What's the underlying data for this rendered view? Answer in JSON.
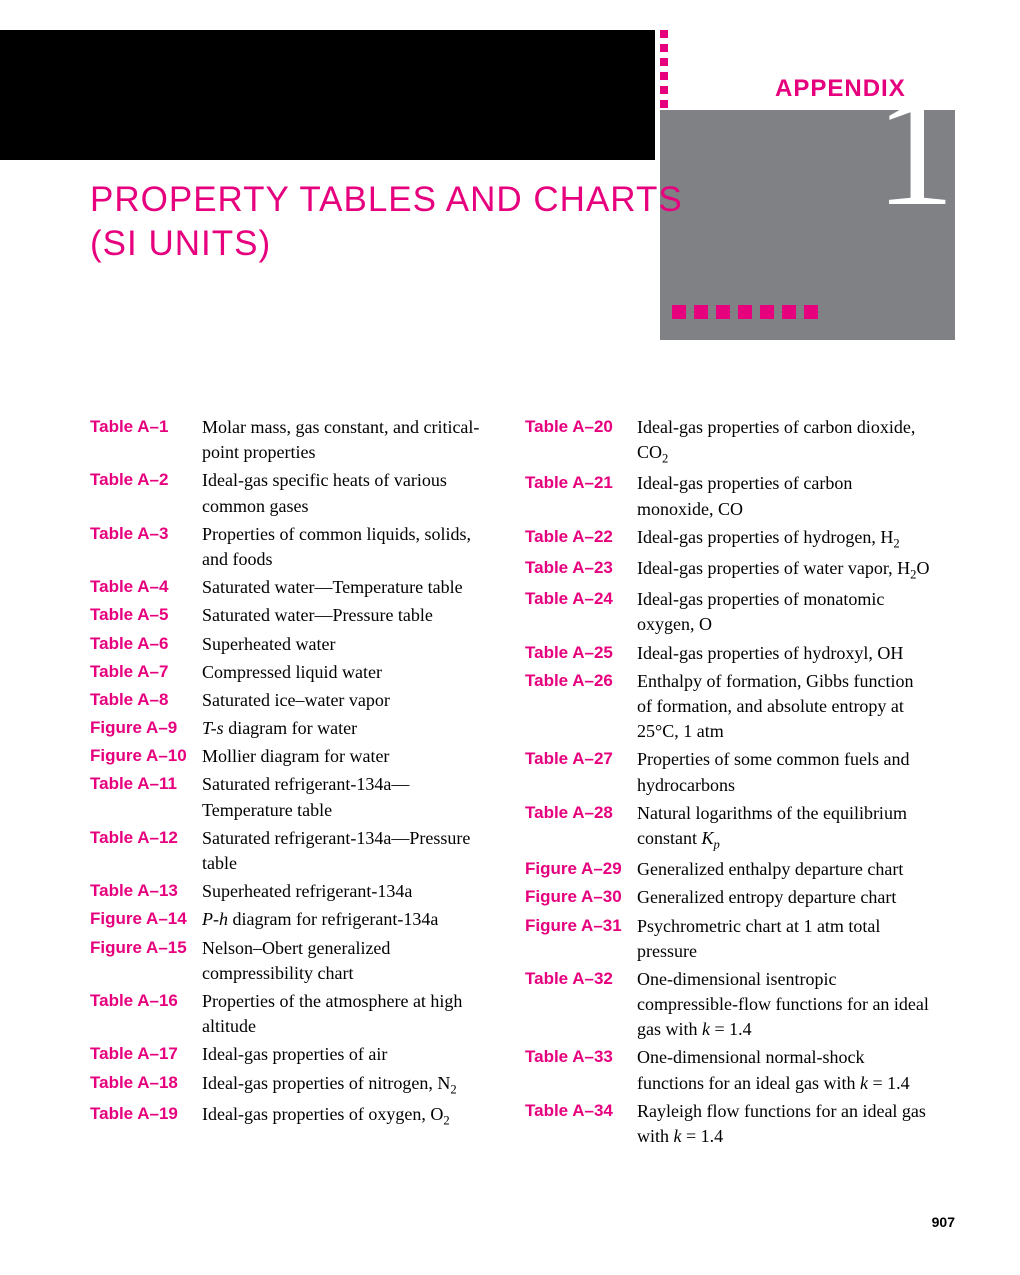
{
  "header": {
    "appendix_label": "APPENDIX",
    "appendix_number": "1",
    "title_line1": "PROPERTY TABLES AND CHARTS",
    "title_line2": "(SI UNITS)"
  },
  "colors": {
    "magenta": "#e6007e",
    "gray": "#808184",
    "black": "#000000",
    "white": "#ffffff"
  },
  "toc_left": [
    {
      "label": "Table A–1",
      "desc": "Molar mass, gas constant, and critical-point properties"
    },
    {
      "label": "Table A–2",
      "desc": "Ideal-gas specific heats of various common gases"
    },
    {
      "label": "Table A–3",
      "desc": "Properties of common liquids, solids, and foods"
    },
    {
      "label": "Table A–4",
      "desc": "Saturated water—Temperature table"
    },
    {
      "label": "Table A–5",
      "desc": "Saturated water—Pressure table"
    },
    {
      "label": "Table A–6",
      "desc": "Superheated water"
    },
    {
      "label": "Table A–7",
      "desc": "Compressed liquid water"
    },
    {
      "label": "Table A–8",
      "desc": "Saturated ice–water vapor"
    },
    {
      "label": "Figure A–9",
      "desc": "<i>T-s</i> diagram for water"
    },
    {
      "label": "Figure A–10",
      "desc": "Mollier diagram for water"
    },
    {
      "label": "Table A–11",
      "desc": "Saturated refrigerant-134a—Temperature table"
    },
    {
      "label": "Table A–12",
      "desc": "Saturated refrigerant-134a—Pressure table"
    },
    {
      "label": "Table A–13",
      "desc": "Superheated refrigerant-134a"
    },
    {
      "label": "Figure A–14",
      "desc": "<i>P-h</i> diagram for refrigerant-134a"
    },
    {
      "label": "Figure A–15",
      "desc": "Nelson–Obert generalized compressibility chart"
    },
    {
      "label": "Table A–16",
      "desc": "Properties of the atmosphere at high altitude"
    },
    {
      "label": "Table A–17",
      "desc": "Ideal-gas properties of air"
    },
    {
      "label": "Table A–18",
      "desc": "Ideal-gas properties of nitrogen, N<sub>2</sub>"
    },
    {
      "label": "Table A–19",
      "desc": "Ideal-gas properties of oxygen, O<sub>2</sub>"
    }
  ],
  "toc_right": [
    {
      "label": "Table A–20",
      "desc": "Ideal-gas properties of carbon dioxide, CO<sub>2</sub>"
    },
    {
      "label": "Table A–21",
      "desc": "Ideal-gas properties of carbon monoxide, CO"
    },
    {
      "label": "Table A–22",
      "desc": "Ideal-gas properties of hydrogen, H<sub>2</sub>"
    },
    {
      "label": "Table A–23",
      "desc": "Ideal-gas properties of water vapor, H<sub>2</sub>O"
    },
    {
      "label": "Table A–24",
      "desc": "Ideal-gas properties of monatomic oxygen, O"
    },
    {
      "label": "Table A–25",
      "desc": "Ideal-gas properties of hydroxyl, OH"
    },
    {
      "label": "Table A–26",
      "desc": "Enthalpy of formation, Gibbs function of formation, and absolute entropy at 25°C, 1 atm"
    },
    {
      "label": "Table A–27",
      "desc": "Properties of some common fuels and hydrocarbons"
    },
    {
      "label": "Table A–28",
      "desc": "Natural logarithms of the equilibrium constant <i>K<sub>p</sub></i>"
    },
    {
      "label": "Figure A–29",
      "desc": "Generalized enthalpy departure chart"
    },
    {
      "label": "Figure A–30",
      "desc": "Generalized entropy departure chart"
    },
    {
      "label": "Figure A–31",
      "desc": "Psychrometric chart at 1 atm total pressure"
    },
    {
      "label": "Table A–32",
      "desc": "One-dimensional isentropic compressible-flow functions for an ideal gas with <i>k</i> = 1.4"
    },
    {
      "label": "Table A–33",
      "desc": "One-dimensional normal-shock functions for an ideal gas with <i>k</i> = 1.4"
    },
    {
      "label": "Table A–34",
      "desc": "Rayleigh flow functions for an ideal gas with <i>k</i> = 1.4"
    }
  ],
  "page_number": "907"
}
